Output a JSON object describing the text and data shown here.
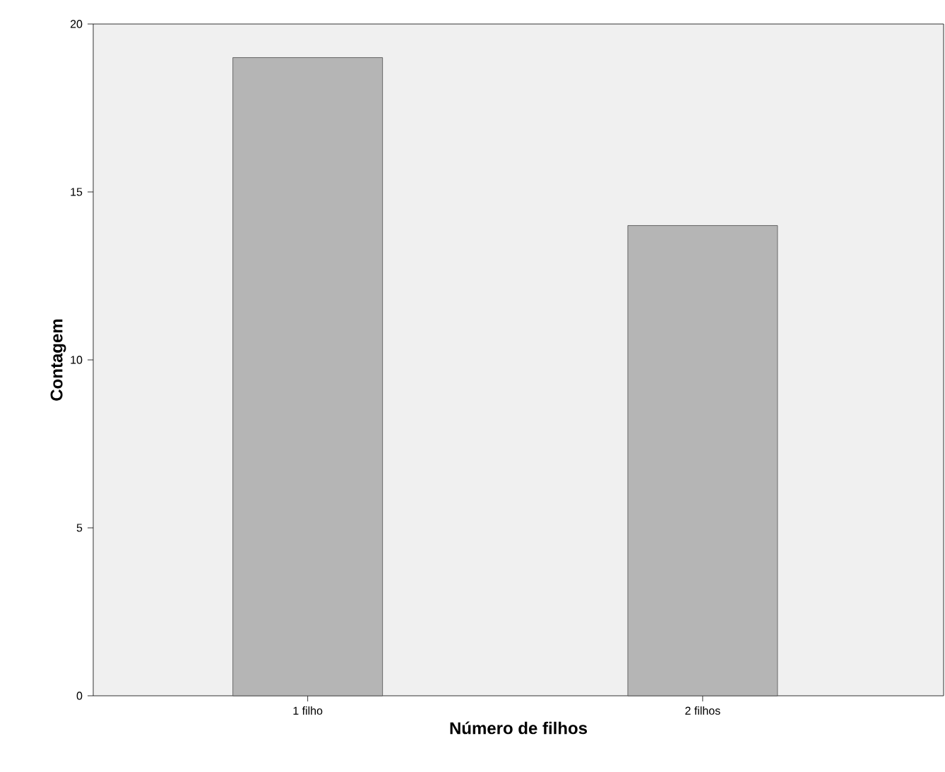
{
  "chart_data": {
    "type": "bar",
    "xlabel": "Número de filhos",
    "ylabel": "Contagem",
    "categories": [
      "1 filho",
      "2 filhos"
    ],
    "values": [
      19,
      14
    ],
    "color": "#b5b5b5",
    "ylim": [
      0,
      20
    ],
    "yticks": [
      0,
      5,
      10,
      15,
      20
    ]
  }
}
